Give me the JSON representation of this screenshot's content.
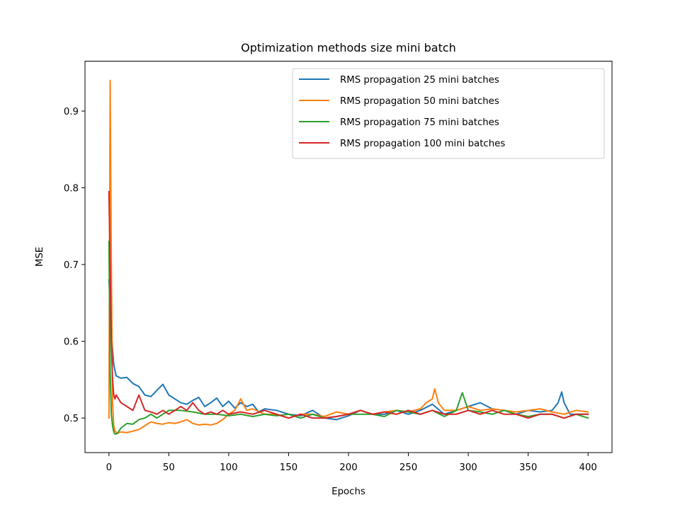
{
  "chart_data": {
    "type": "line",
    "title": "Optimization methods size mini batch",
    "xlabel": "Epochs",
    "ylabel": "MSE",
    "xlim": [
      -20,
      420
    ],
    "ylim": [
      0.455,
      0.965
    ],
    "xticks": [
      0,
      50,
      100,
      150,
      200,
      250,
      300,
      350,
      400
    ],
    "yticks": [
      0.5,
      0.6,
      0.7,
      0.8,
      0.9
    ],
    "xtick_labels": [
      "0",
      "50",
      "100",
      "150",
      "200",
      "250",
      "300",
      "350",
      "400"
    ],
    "ytick_labels": [
      "0.5",
      "0.6",
      "0.7",
      "0.8",
      "0.9"
    ],
    "grid": false,
    "legend_position": "top-right",
    "series": [
      {
        "name": "RMS propagation 25 mini batches",
        "color": "#1f77b4",
        "x": [
          0,
          1,
          2,
          4,
          6,
          10,
          15,
          20,
          25,
          30,
          35,
          40,
          45,
          50,
          55,
          60,
          65,
          70,
          75,
          80,
          85,
          90,
          95,
          100,
          105,
          110,
          115,
          120,
          125,
          130,
          140,
          150,
          160,
          170,
          180,
          190,
          200,
          210,
          220,
          230,
          240,
          250,
          260,
          270,
          280,
          290,
          300,
          310,
          320,
          330,
          340,
          350,
          360,
          370,
          375,
          378,
          380,
          385,
          390,
          400
        ],
        "y": [
          0.68,
          0.65,
          0.61,
          0.57,
          0.555,
          0.552,
          0.553,
          0.545,
          0.541,
          0.53,
          0.528,
          0.536,
          0.544,
          0.53,
          0.525,
          0.52,
          0.518,
          0.523,
          0.527,
          0.515,
          0.52,
          0.526,
          0.515,
          0.522,
          0.513,
          0.52,
          0.515,
          0.518,
          0.508,
          0.512,
          0.51,
          0.505,
          0.503,
          0.51,
          0.5,
          0.498,
          0.503,
          0.51,
          0.505,
          0.505,
          0.51,
          0.505,
          0.51,
          0.518,
          0.505,
          0.51,
          0.515,
          0.52,
          0.512,
          0.51,
          0.505,
          0.51,
          0.508,
          0.51,
          0.52,
          0.534,
          0.52,
          0.505,
          0.505,
          0.505
        ]
      },
      {
        "name": "RMS propagation 50 mini batches",
        "color": "#ff7f0e",
        "x": [
          0,
          1,
          2,
          3,
          4,
          5,
          7,
          10,
          15,
          20,
          25,
          30,
          35,
          40,
          45,
          50,
          55,
          60,
          65,
          70,
          75,
          80,
          85,
          90,
          95,
          100,
          105,
          110,
          115,
          120,
          130,
          140,
          150,
          160,
          170,
          180,
          190,
          200,
          210,
          220,
          230,
          240,
          250,
          260,
          265,
          270,
          272,
          275,
          280,
          290,
          300,
          310,
          320,
          330,
          340,
          350,
          360,
          370,
          380,
          390,
          400
        ],
        "y": [
          0.5,
          0.94,
          0.7,
          0.52,
          0.49,
          0.483,
          0.48,
          0.482,
          0.481,
          0.483,
          0.485,
          0.49,
          0.495,
          0.493,
          0.492,
          0.494,
          0.493,
          0.495,
          0.498,
          0.493,
          0.491,
          0.492,
          0.491,
          0.493,
          0.498,
          0.505,
          0.51,
          0.525,
          0.51,
          0.512,
          0.505,
          0.505,
          0.5,
          0.505,
          0.505,
          0.502,
          0.508,
          0.505,
          0.51,
          0.505,
          0.508,
          0.51,
          0.508,
          0.512,
          0.52,
          0.525,
          0.538,
          0.52,
          0.51,
          0.51,
          0.515,
          0.51,
          0.512,
          0.51,
          0.508,
          0.51,
          0.512,
          0.508,
          0.505,
          0.51,
          0.508
        ]
      },
      {
        "name": "RMS propagation 75 mini batches",
        "color": "#2ca02c",
        "x": [
          0,
          1,
          2,
          3,
          4,
          5,
          7,
          10,
          15,
          20,
          25,
          30,
          35,
          40,
          45,
          50,
          60,
          70,
          80,
          90,
          100,
          110,
          120,
          130,
          140,
          150,
          160,
          170,
          180,
          190,
          200,
          210,
          220,
          230,
          240,
          250,
          260,
          270,
          280,
          290,
          295,
          300,
          310,
          320,
          330,
          340,
          350,
          360,
          370,
          380,
          390,
          400
        ],
        "y": [
          0.73,
          0.56,
          0.505,
          0.49,
          0.482,
          0.479,
          0.48,
          0.487,
          0.493,
          0.492,
          0.498,
          0.5,
          0.505,
          0.5,
          0.505,
          0.51,
          0.51,
          0.508,
          0.505,
          0.505,
          0.503,
          0.505,
          0.502,
          0.505,
          0.503,
          0.505,
          0.5,
          0.505,
          0.5,
          0.502,
          0.505,
          0.505,
          0.505,
          0.502,
          0.51,
          0.508,
          0.505,
          0.51,
          0.502,
          0.51,
          0.533,
          0.51,
          0.508,
          0.505,
          0.51,
          0.505,
          0.502,
          0.505,
          0.505,
          0.5,
          0.505,
          0.5
        ]
      },
      {
        "name": "RMS propagation 100 mini batches",
        "color": "#d62728",
        "x": [
          0,
          1,
          2,
          3,
          4,
          5,
          6,
          8,
          10,
          15,
          20,
          25,
          30,
          35,
          40,
          45,
          50,
          55,
          60,
          65,
          70,
          75,
          80,
          85,
          90,
          95,
          100,
          110,
          120,
          130,
          140,
          150,
          160,
          170,
          180,
          190,
          200,
          210,
          220,
          230,
          240,
          250,
          260,
          270,
          280,
          290,
          300,
          310,
          320,
          330,
          340,
          350,
          360,
          370,
          380,
          390,
          400
        ],
        "y": [
          0.795,
          0.7,
          0.6,
          0.55,
          0.53,
          0.525,
          0.53,
          0.525,
          0.52,
          0.515,
          0.51,
          0.53,
          0.51,
          0.508,
          0.505,
          0.51,
          0.505,
          0.51,
          0.515,
          0.51,
          0.52,
          0.51,
          0.505,
          0.508,
          0.505,
          0.51,
          0.505,
          0.508,
          0.505,
          0.51,
          0.505,
          0.5,
          0.505,
          0.5,
          0.5,
          0.502,
          0.505,
          0.51,
          0.505,
          0.508,
          0.505,
          0.51,
          0.505,
          0.51,
          0.505,
          0.505,
          0.51,
          0.505,
          0.51,
          0.505,
          0.505,
          0.5,
          0.505,
          0.505,
          0.5,
          0.505,
          0.505
        ]
      }
    ]
  }
}
